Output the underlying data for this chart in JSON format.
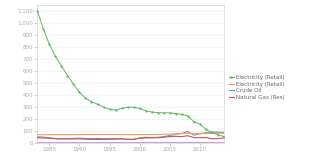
{
  "title": "",
  "xlabel": "",
  "ylabel": "",
  "xlim": [
    1983,
    2014
  ],
  "ylim": [
    0,
    1150
  ],
  "yticks": [
    0,
    100,
    200,
    300,
    400,
    500,
    600,
    700,
    800,
    900,
    1000,
    1100
  ],
  "ytick_labels": [
    "0",
    "100",
    "200",
    "300",
    "400",
    "500",
    "600",
    "700",
    "800",
    "900",
    "1,000",
    "1,100"
  ],
  "xticks": [
    1985,
    1990,
    1995,
    2000,
    2005,
    2010
  ],
  "background_color": "#ffffff",
  "years": [
    1983,
    1984,
    1985,
    1986,
    1987,
    1988,
    1989,
    1990,
    1991,
    1992,
    1993,
    1994,
    1995,
    1996,
    1997,
    1998,
    1999,
    2000,
    2001,
    2002,
    2003,
    2004,
    2005,
    2006,
    2007,
    2008,
    2009,
    2010,
    2011,
    2012,
    2013,
    2014
  ],
  "solar": [
    1100,
    950,
    820,
    720,
    640,
    560,
    490,
    420,
    370,
    340,
    320,
    295,
    278,
    272,
    285,
    295,
    295,
    285,
    265,
    255,
    250,
    248,
    248,
    242,
    236,
    220,
    175,
    155,
    110,
    85,
    65,
    50
  ],
  "solar_color": "#5cb85c",
  "electricity": [
    65,
    65,
    66,
    66,
    66,
    66,
    66,
    67,
    67,
    67,
    67,
    67,
    67,
    67,
    67,
    66,
    66,
    67,
    67,
    67,
    68,
    69,
    71,
    73,
    75,
    77,
    75,
    74,
    75,
    76,
    77,
    78
  ],
  "electricity_color": "#f0a050",
  "crude_oil": [
    48,
    46,
    40,
    34,
    32,
    34,
    35,
    37,
    34,
    34,
    34,
    32,
    32,
    34,
    32,
    27,
    27,
    37,
    37,
    40,
    44,
    50,
    59,
    69,
    76,
    92,
    62,
    74,
    82,
    87,
    87,
    85
  ],
  "crude_oil_color": "#6699cc",
  "natural_gas": [
    40,
    38,
    36,
    32,
    30,
    30,
    30,
    30,
    28,
    26,
    26,
    26,
    27,
    28,
    30,
    27,
    27,
    37,
    44,
    40,
    40,
    44,
    50,
    52,
    50,
    57,
    42,
    40,
    42,
    32,
    32,
    40
  ],
  "natural_gas_color": "#cc5555",
  "nuclear": [
    4,
    4,
    4,
    4,
    4,
    4,
    4,
    4,
    4,
    4,
    4,
    4,
    4,
    4,
    4,
    4,
    4,
    4,
    4,
    4,
    4,
    4,
    4,
    4,
    4,
    4,
    4,
    4,
    4,
    4,
    4,
    4
  ],
  "nuclear_color": "#c8a0d8",
  "tick_fontsize": 4,
  "legend_fontsize": 4,
  "legend_labels": [
    "Electricity (Retail)",
    "Electricity (Retail)",
    "Crude Oil",
    "Natural Gas (Res)"
  ]
}
